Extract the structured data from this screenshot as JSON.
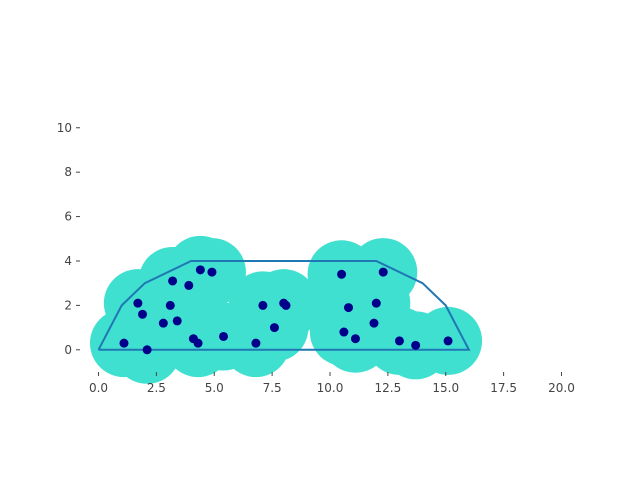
{
  "chart_data": {
    "type": "scatter",
    "title": "",
    "xlabel": "",
    "ylabel": "",
    "xlim": [
      -0.8,
      20.8
    ],
    "ylim": [
      -1,
      10.8
    ],
    "grid": false,
    "x_ticks": [
      0,
      2.5,
      5,
      7.5,
      10,
      12.5,
      15,
      17.5,
      20
    ],
    "x_tick_labels": [
      "0.0",
      "2.5",
      "5.0",
      "7.5",
      "10.0",
      "12.5",
      "15.0",
      "17.5",
      "20.0"
    ],
    "y_ticks": [
      0,
      2,
      4,
      6,
      8,
      10
    ],
    "y_tick_labels": [
      "0",
      "2",
      "4",
      "6",
      "8",
      "10"
    ],
    "colors": {
      "points": "#00008b",
      "blobs": "#40e0d0",
      "hull": "#1f77b4",
      "ticks": "#444444"
    },
    "hull": [
      [
        0,
        0
      ],
      [
        1,
        2
      ],
      [
        2,
        3
      ],
      [
        4,
        4
      ],
      [
        12,
        4
      ],
      [
        14,
        3
      ],
      [
        15,
        2
      ],
      [
        16,
        0
      ],
      [
        0,
        0
      ]
    ],
    "series": [
      {
        "x": [
          1.1,
          1.7,
          1.9,
          2.1,
          2.8,
          3.1,
          3.2,
          3.4,
          3.9,
          4.1,
          4.3,
          4.4,
          4.9,
          5.4,
          6.8,
          7.1,
          7.6,
          8.0,
          8.1,
          10.5,
          10.6,
          10.8,
          11.1,
          11.9,
          12.0,
          12.3,
          13.0,
          13.7,
          15.1
        ],
        "y": [
          0.3,
          2.1,
          1.6,
          0.0,
          1.2,
          2.0,
          3.1,
          1.3,
          2.9,
          0.5,
          0.3,
          3.6,
          3.5,
          0.6,
          0.3,
          2.0,
          1.0,
          2.1,
          2.0,
          3.4,
          0.8,
          1.9,
          0.5,
          1.2,
          2.1,
          3.5,
          0.4,
          0.2,
          0.4
        ]
      }
    ]
  }
}
